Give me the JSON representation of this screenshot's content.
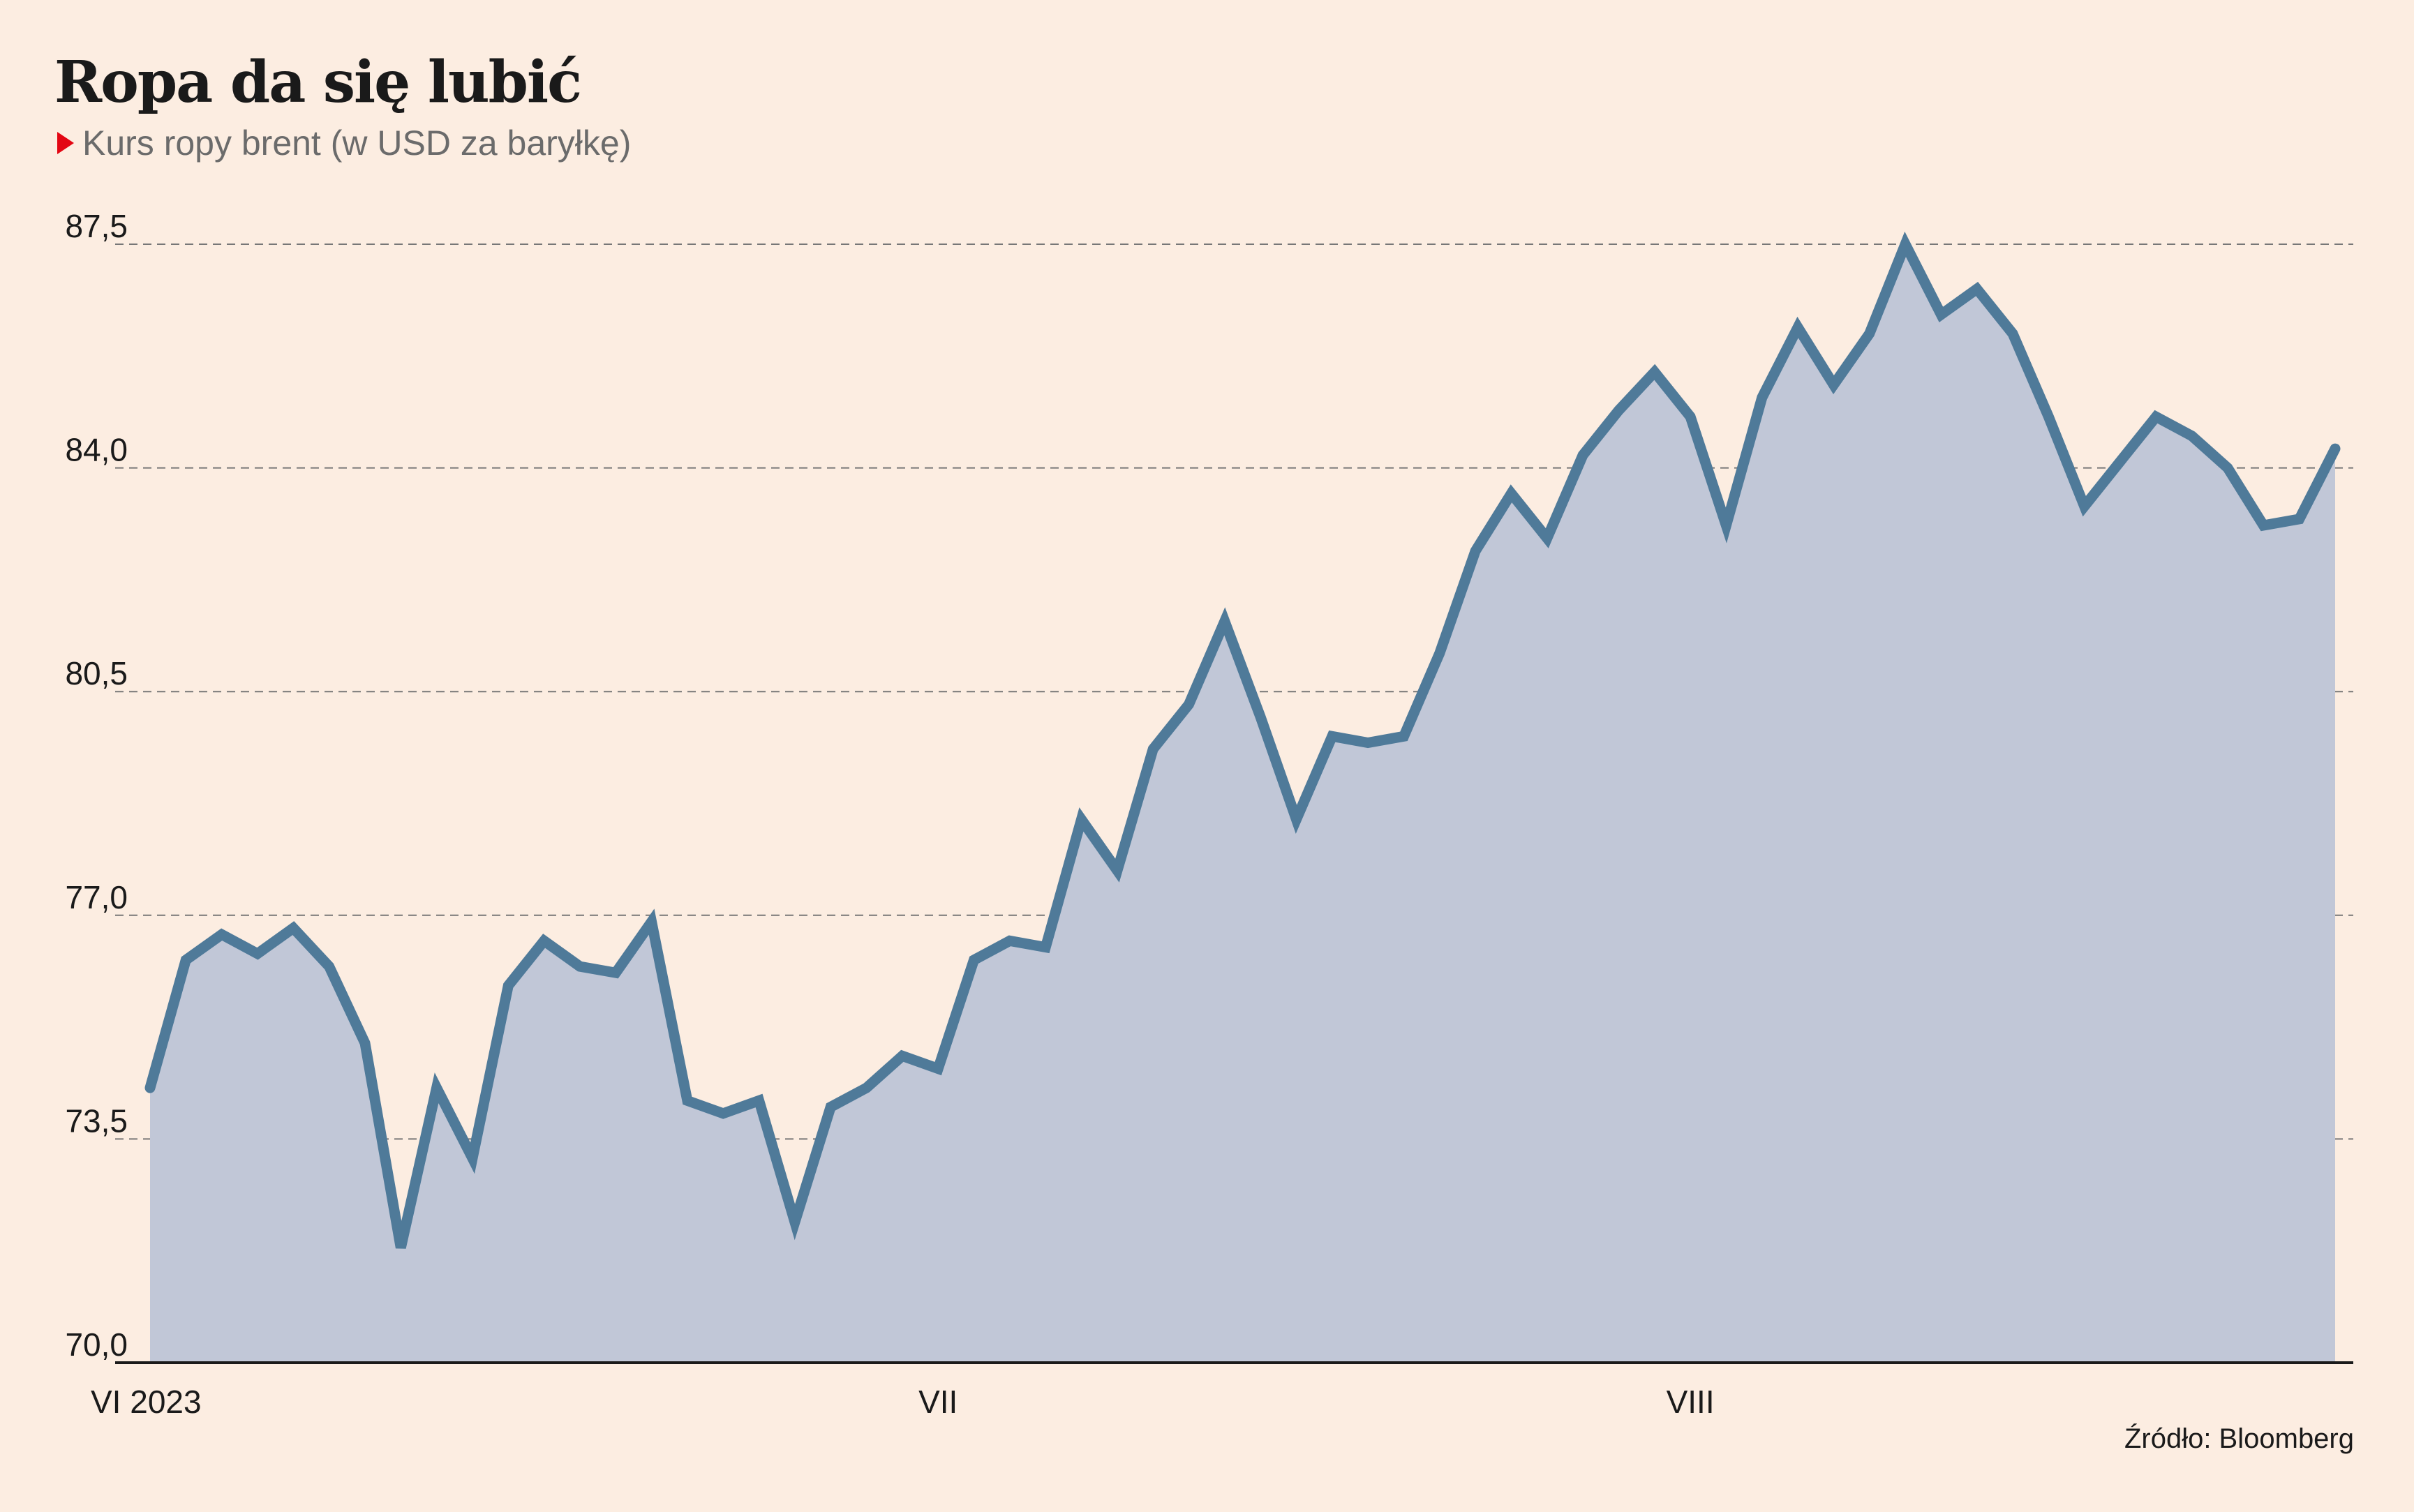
{
  "title": "Ropa da się lubić",
  "subtitle": "Kurs ropy brent (w USD za baryłkę)",
  "source": "Źródło: Bloomberg",
  "colors": {
    "background": "#fcede1",
    "line": "#4f7a99",
    "area": "#c1c7d7",
    "marker": "#e30613",
    "grid": "#777777"
  },
  "chart_data": {
    "type": "area",
    "title": "Ropa da się lubić",
    "subtitle": "Kurs ropy brent (w USD za baryłkę)",
    "ylim": [
      70.0,
      87.5
    ],
    "yticks": [
      "70,0",
      "73,5",
      "77,0",
      "80,5",
      "84,0",
      "87,5"
    ],
    "ytick_values": [
      70.0,
      73.5,
      77.0,
      80.5,
      84.0,
      87.5
    ],
    "xticks": [
      {
        "label": "VI 2023",
        "index": 0
      },
      {
        "label": "VII",
        "index": 22
      },
      {
        "label": "VIII",
        "index": 43
      }
    ],
    "grid": "horizontal dashed",
    "series": [
      {
        "values": [
          74.3,
          76.3,
          76.7,
          76.4,
          76.8,
          76.2,
          75.0,
          71.8,
          74.3,
          73.2,
          75.9,
          76.6,
          76.2,
          76.1,
          76.9,
          74.1,
          73.9,
          74.1,
          72.2,
          74.0,
          74.3,
          74.8,
          74.6,
          76.3,
          76.6,
          76.5,
          78.5,
          77.7,
          79.6,
          80.3,
          81.6,
          80.1,
          78.5,
          79.8,
          79.7,
          79.8,
          81.1,
          82.7,
          83.6,
          82.9,
          84.2,
          84.9,
          85.5,
          84.8,
          83.1,
          85.1,
          86.2,
          85.3,
          86.1,
          87.5,
          86.4,
          86.8,
          86.1,
          84.8,
          83.4,
          84.1,
          84.8,
          84.5,
          84.0,
          83.1,
          83.2,
          84.3
        ]
      }
    ]
  }
}
